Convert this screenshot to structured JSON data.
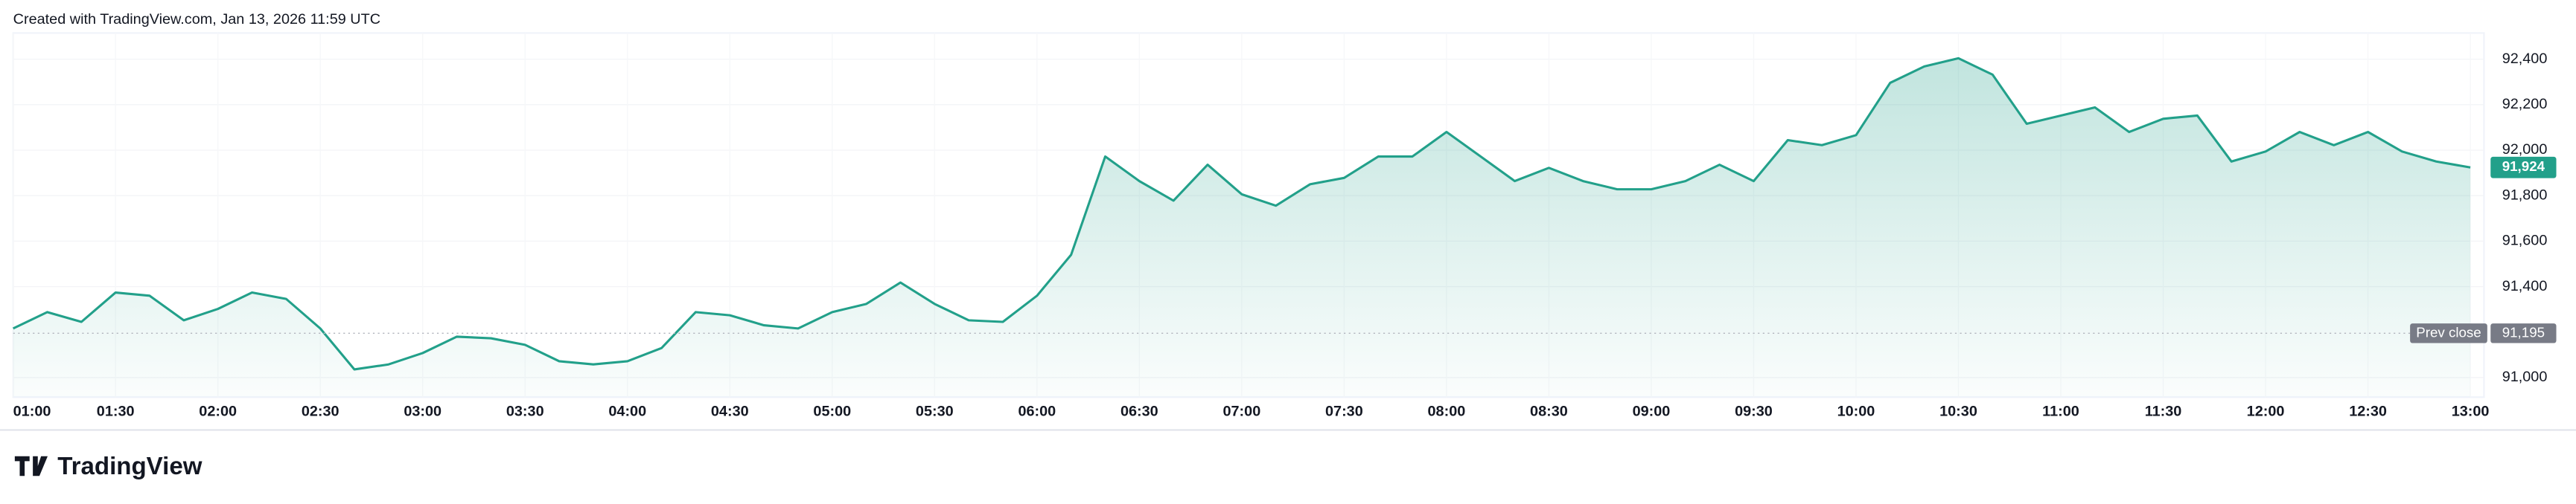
{
  "chart_data": {
    "type": "area",
    "caption": "Created with TradingView.com, Jan 13, 2026 11:59 UTC",
    "brand": "TradingView",
    "color": "#22a08a",
    "x": [
      "01:00",
      "01:10",
      "01:20",
      "01:30",
      "01:40",
      "01:50",
      "02:00",
      "02:10",
      "02:20",
      "02:30",
      "02:40",
      "02:50",
      "03:00",
      "03:10",
      "03:20",
      "03:30",
      "03:40",
      "03:50",
      "04:00",
      "04:10",
      "04:20",
      "04:30",
      "04:40",
      "04:50",
      "05:00",
      "05:10",
      "05:20",
      "05:30",
      "05:40",
      "05:50",
      "06:00",
      "06:10",
      "06:20",
      "06:30",
      "06:40",
      "06:50",
      "07:00",
      "07:10",
      "07:20",
      "07:30",
      "07:40",
      "07:50",
      "08:00",
      "08:10",
      "08:20",
      "08:30",
      "08:40",
      "08:50",
      "09:00",
      "09:10",
      "09:20",
      "09:30",
      "09:40",
      "09:50",
      "10:00",
      "10:10",
      "10:20",
      "10:30",
      "10:40",
      "10:50",
      "11:00",
      "11:10",
      "11:20",
      "11:30",
      "11:40",
      "11:50",
      "12:00",
      "12:10",
      "12:20",
      "12:30",
      "12:40",
      "12:50",
      "13:00"
    ],
    "values": [
      91216,
      91288,
      91245,
      91374,
      91360,
      91252,
      91302,
      91374,
      91346,
      91216,
      91036,
      91058,
      91108,
      91180,
      91173,
      91144,
      91072,
      91058,
      91072,
      91130,
      91288,
      91274,
      91230,
      91216,
      91288,
      91324,
      91418,
      91324,
      91252,
      91245,
      91360,
      91540,
      91972,
      91864,
      91778,
      91936,
      91806,
      91756,
      91850,
      91878,
      91972,
      91972,
      92080,
      91972,
      91864,
      91922,
      91864,
      91828,
      91828,
      91864,
      91936,
      91864,
      92044,
      92022,
      92066,
      92296,
      92368,
      92404,
      92332,
      92116,
      92152,
      92188,
      92080,
      92138,
      92152,
      91950,
      91994,
      92080,
      92022,
      92080,
      91994,
      91950,
      91924
    ],
    "xlim": [
      "01:00",
      "13:04"
    ],
    "xticks": [
      "01:00",
      "01:30",
      "02:00",
      "02:30",
      "03:00",
      "03:30",
      "04:00",
      "04:30",
      "05:00",
      "05:30",
      "06:00",
      "06:30",
      "07:00",
      "07:30",
      "08:00",
      "08:30",
      "09:00",
      "09:30",
      "10:00",
      "10:30",
      "11:00",
      "11:30",
      "12:00",
      "12:30",
      "13:00"
    ],
    "ylim": [
      90914,
      92515
    ],
    "yticks": [
      {
        "value": 91000,
        "label": "91,000"
      },
      {
        "value": 91400,
        "label": "91,400"
      },
      {
        "value": 91600,
        "label": "91,600"
      },
      {
        "value": 91800,
        "label": "91,800"
      },
      {
        "value": 92000,
        "label": "92,000"
      },
      {
        "value": 92200,
        "label": "92,200"
      },
      {
        "value": 92400,
        "label": "92,400"
      }
    ],
    "last_price": {
      "value": 91924,
      "label": "91,924"
    },
    "prev_close": {
      "name": "Prev close",
      "value": 91195,
      "label": "91,195"
    }
  }
}
